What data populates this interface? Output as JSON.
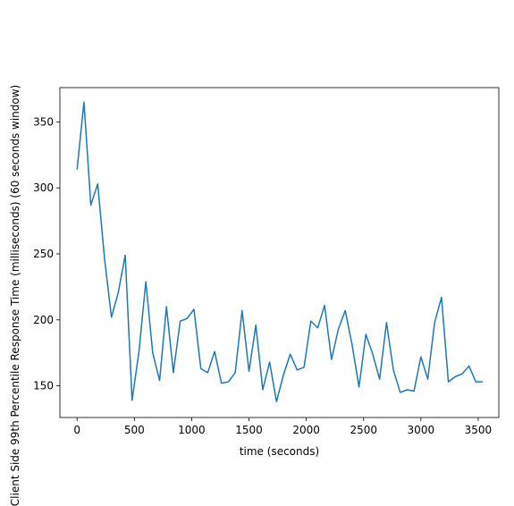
{
  "chart_data": {
    "type": "line",
    "xlabel": "time (seconds)",
    "ylabel": "Client Side 99th Percentile Response Time (milliseconds) (60 seconds window)",
    "xlim": [
      -150,
      3680
    ],
    "ylim": [
      126,
      376
    ],
    "x_ticks": [
      0,
      500,
      1000,
      1500,
      2000,
      2500,
      3000,
      3500
    ],
    "x_tick_labels": [
      "0",
      "500",
      "1000",
      "1500",
      "2000",
      "2500",
      "3000",
      "3500"
    ],
    "y_ticks": [
      150,
      200,
      250,
      300,
      350
    ],
    "y_tick_labels": [
      "150",
      "200",
      "250",
      "300",
      "350"
    ],
    "grid": false,
    "series": [
      {
        "color": "#1f77b4",
        "x": [
          0,
          60,
          120,
          180,
          240,
          300,
          360,
          420,
          480,
          540,
          600,
          660,
          720,
          780,
          840,
          900,
          960,
          1020,
          1080,
          1140,
          1200,
          1260,
          1320,
          1380,
          1440,
          1500,
          1560,
          1620,
          1680,
          1740,
          1800,
          1860,
          1920,
          1980,
          2040,
          2100,
          2160,
          2220,
          2280,
          2340,
          2400,
          2460,
          2520,
          2580,
          2640,
          2700,
          2760,
          2820,
          2880,
          2940,
          3000,
          3060,
          3120,
          3180,
          3240,
          3300,
          3360,
          3420,
          3480,
          3540
        ],
        "y": [
          314,
          365,
          287,
          303,
          246,
          202,
          221,
          249,
          139,
          176,
          229,
          175,
          154,
          210,
          160,
          199,
          201,
          208,
          163,
          160,
          176,
          152,
          153,
          160,
          207,
          161,
          196,
          147,
          168,
          138,
          158,
          174,
          162,
          164,
          199,
          194,
          211,
          170,
          193,
          207,
          181,
          149,
          189,
          174,
          155,
          198,
          162,
          145,
          147,
          146,
          172,
          155,
          198,
          217,
          153,
          157,
          159,
          165,
          153,
          153
        ]
      }
    ]
  }
}
